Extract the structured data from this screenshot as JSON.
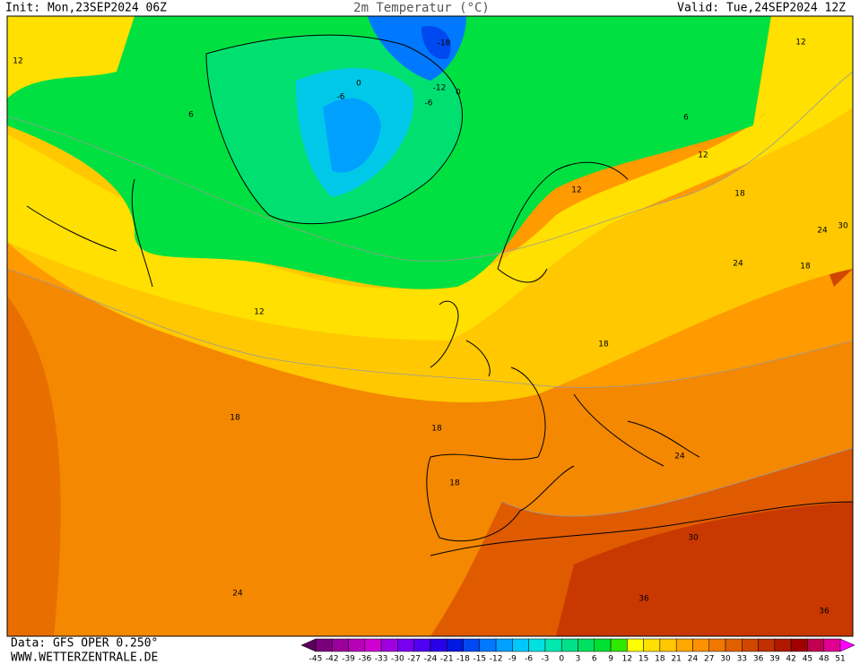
{
  "header": {
    "init": "Init: Mon,23SEP2024 06Z",
    "title": "2m Temperatur (°C)",
    "valid": "Valid: Tue,24SEP2024 12Z"
  },
  "footer": {
    "source": "Data: GFS OPER 0.250°",
    "site": "WWW.WETTERZENTRALE.DE"
  },
  "contour_labels": [
    12,
    -18,
    -12,
    -6,
    -6,
    0,
    0,
    6,
    6,
    12,
    12,
    12,
    18,
    24,
    30,
    24,
    18,
    12,
    18,
    18,
    18,
    18,
    24,
    30,
    24,
    36,
    36
  ],
  "colorbar": {
    "ticks": [
      -45,
      -42,
      -39,
      -36,
      -33,
      -30,
      -27,
      -24,
      -21,
      -18,
      -15,
      -12,
      -9,
      -6,
      -3,
      0,
      3,
      6,
      9,
      12,
      15,
      18,
      21,
      24,
      27,
      30,
      33,
      36,
      39,
      42,
      45,
      48,
      51
    ],
    "colors": [
      "#5c005c",
      "#7a007a",
      "#9a009a",
      "#b800b8",
      "#d000d0",
      "#a000e0",
      "#7800f0",
      "#5000f0",
      "#2800e8",
      "#0018e0",
      "#0048f0",
      "#0078ff",
      "#00a0ff",
      "#00c8ff",
      "#00e0e0",
      "#00e8b0",
      "#00e088",
      "#00e060",
      "#00e030",
      "#30e800",
      "#ffff00",
      "#ffe000",
      "#ffc800",
      "#ffa800",
      "#ff9000",
      "#f07800",
      "#e06000",
      "#d04800",
      "#c03000",
      "#b01800",
      "#a00000",
      "#c00050",
      "#e00090",
      "#ff00ff"
    ]
  }
}
